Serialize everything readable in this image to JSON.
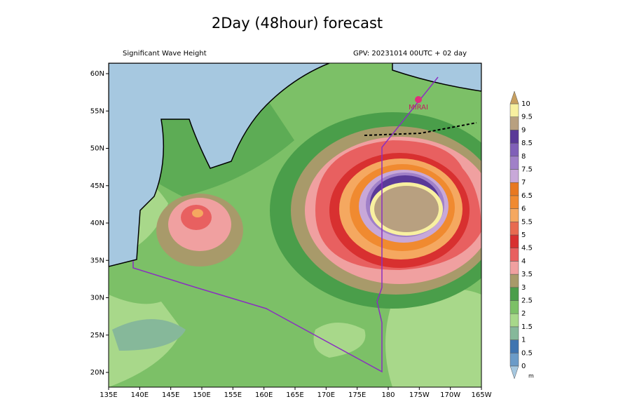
{
  "header": {
    "title": "2Day (48hour) forecast"
  },
  "map": {
    "subtitle_left": "Significant Wave Height",
    "subtitle_right": "GPV: 20231014 00UTC + 02 day",
    "lon_labels": [
      "135E",
      "140E",
      "145E",
      "150E",
      "155E",
      "160E",
      "165E",
      "170E",
      "175E",
      "180",
      "175W",
      "170W",
      "165W"
    ],
    "lat_labels": [
      "20N",
      "25N",
      "30N",
      "35N",
      "40N",
      "45N",
      "50N",
      "55N",
      "60N"
    ],
    "ship_label": "MIRAI"
  },
  "colorbar": {
    "levels": [
      0,
      0.5,
      1,
      1.5,
      2,
      2.5,
      3,
      3.5,
      4,
      4.5,
      5,
      5.5,
      6,
      6.5,
      7,
      7.5,
      8,
      8.5,
      9,
      9.5,
      10
    ],
    "colors": [
      "#6b9bc8",
      "#3f74b0",
      "#86b89a",
      "#a8d88a",
      "#7cc067",
      "#4a9e4a",
      "#a89a6a",
      "#f0a0a0",
      "#e86060",
      "#d83030",
      "#e86a50",
      "#f5a860",
      "#f08a30",
      "#e87820",
      "#c8a8d8",
      "#a080c8",
      "#8060b8",
      "#5a3a98",
      "#b8a080",
      "#f8f0a0"
    ],
    "under_color": "#a6c8e0",
    "over_color": "#c8a060",
    "unit": "m"
  }
}
